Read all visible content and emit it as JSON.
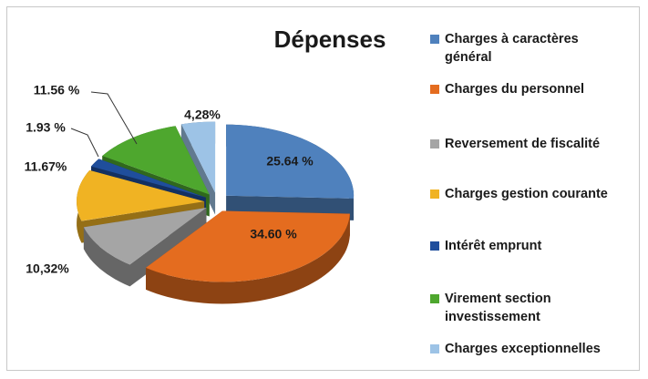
{
  "chart_data": {
    "type": "pie",
    "title": "Dépenses",
    "categories": [
      "Charges à caractères général",
      "Charges du personnel",
      "Reversement de fiscalité",
      "Charges gestion courante",
      "Intérêt emprunt",
      "Virement section investissement",
      "Charges exceptionnelles"
    ],
    "values": [
      25.64,
      34.6,
      10.32,
      11.67,
      1.93,
      11.56,
      4.28
    ],
    "value_labels": [
      "25.64 %",
      "34.60 %",
      "10,32%",
      "11.67%",
      "1.93 %",
      "11.56 %",
      "4,28%"
    ],
    "colors": [
      "#4f81bd",
      "#e46c1f",
      "#a5a5a5",
      "#f0b323",
      "#1f4e9c",
      "#4ea72e",
      "#9dc3e6"
    ]
  }
}
